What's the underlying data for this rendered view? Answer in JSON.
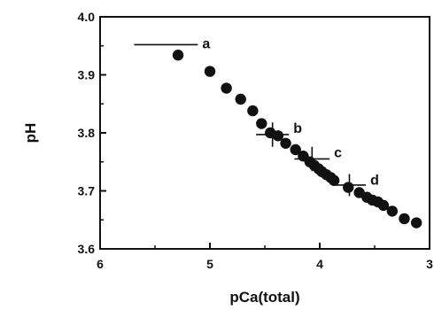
{
  "chart_data": {
    "type": "scatter",
    "xlabel": "pCa(total)",
    "ylabel": "pH",
    "xlim": [
      6,
      3
    ],
    "ylim": [
      3.6,
      4.0
    ],
    "x_reversed": true,
    "grid": false,
    "x_ticks": [
      6,
      5,
      4,
      3
    ],
    "x_tick_labels": [
      "6",
      "5",
      "4",
      "3"
    ],
    "y_ticks": [
      3.6,
      3.7,
      3.8,
      3.9,
      4.0
    ],
    "y_tick_labels": [
      "3.6",
      "3.7",
      "3.8",
      "3.9",
      "4.0"
    ],
    "series": [
      {
        "marker_color": "#111111",
        "points": [
          {
            "x": 5.29,
            "y": 3.934
          },
          {
            "x": 5.0,
            "y": 3.906
          },
          {
            "x": 4.85,
            "y": 3.877
          },
          {
            "x": 4.72,
            "y": 3.858
          },
          {
            "x": 4.61,
            "y": 3.838
          },
          {
            "x": 4.53,
            "y": 3.816
          },
          {
            "x": 4.45,
            "y": 3.8
          },
          {
            "x": 4.38,
            "y": 3.795
          },
          {
            "x": 4.31,
            "y": 3.782
          },
          {
            "x": 4.22,
            "y": 3.771
          },
          {
            "x": 4.15,
            "y": 3.76
          },
          {
            "x": 4.09,
            "y": 3.75
          },
          {
            "x": 4.05,
            "y": 3.744
          },
          {
            "x": 4.01,
            "y": 3.738
          },
          {
            "x": 3.98,
            "y": 3.733
          },
          {
            "x": 3.94,
            "y": 3.728
          },
          {
            "x": 3.9,
            "y": 3.723
          },
          {
            "x": 3.87,
            "y": 3.718
          },
          {
            "x": 3.74,
            "y": 3.706
          },
          {
            "x": 3.64,
            "y": 3.697
          },
          {
            "x": 3.57,
            "y": 3.689
          },
          {
            "x": 3.52,
            "y": 3.684
          },
          {
            "x": 3.47,
            "y": 3.681
          },
          {
            "x": 3.42,
            "y": 3.675
          },
          {
            "x": 3.34,
            "y": 3.665
          },
          {
            "x": 3.23,
            "y": 3.652
          },
          {
            "x": 3.12,
            "y": 3.645
          }
        ]
      }
    ],
    "annotations": [
      {
        "label": "a",
        "x": 5.4,
        "y": 3.952,
        "x_err": 0.29,
        "y_err": 0
      },
      {
        "label": "b",
        "x": 4.43,
        "y": 3.797,
        "x_err": 0.15,
        "y_err": 0.021
      },
      {
        "label": "c",
        "x": 4.07,
        "y": 3.755,
        "x_err": 0.16,
        "y_err": 0.021
      },
      {
        "label": "d",
        "x": 3.73,
        "y": 3.71,
        "x_err": 0.15,
        "y_err": 0.019
      }
    ]
  }
}
